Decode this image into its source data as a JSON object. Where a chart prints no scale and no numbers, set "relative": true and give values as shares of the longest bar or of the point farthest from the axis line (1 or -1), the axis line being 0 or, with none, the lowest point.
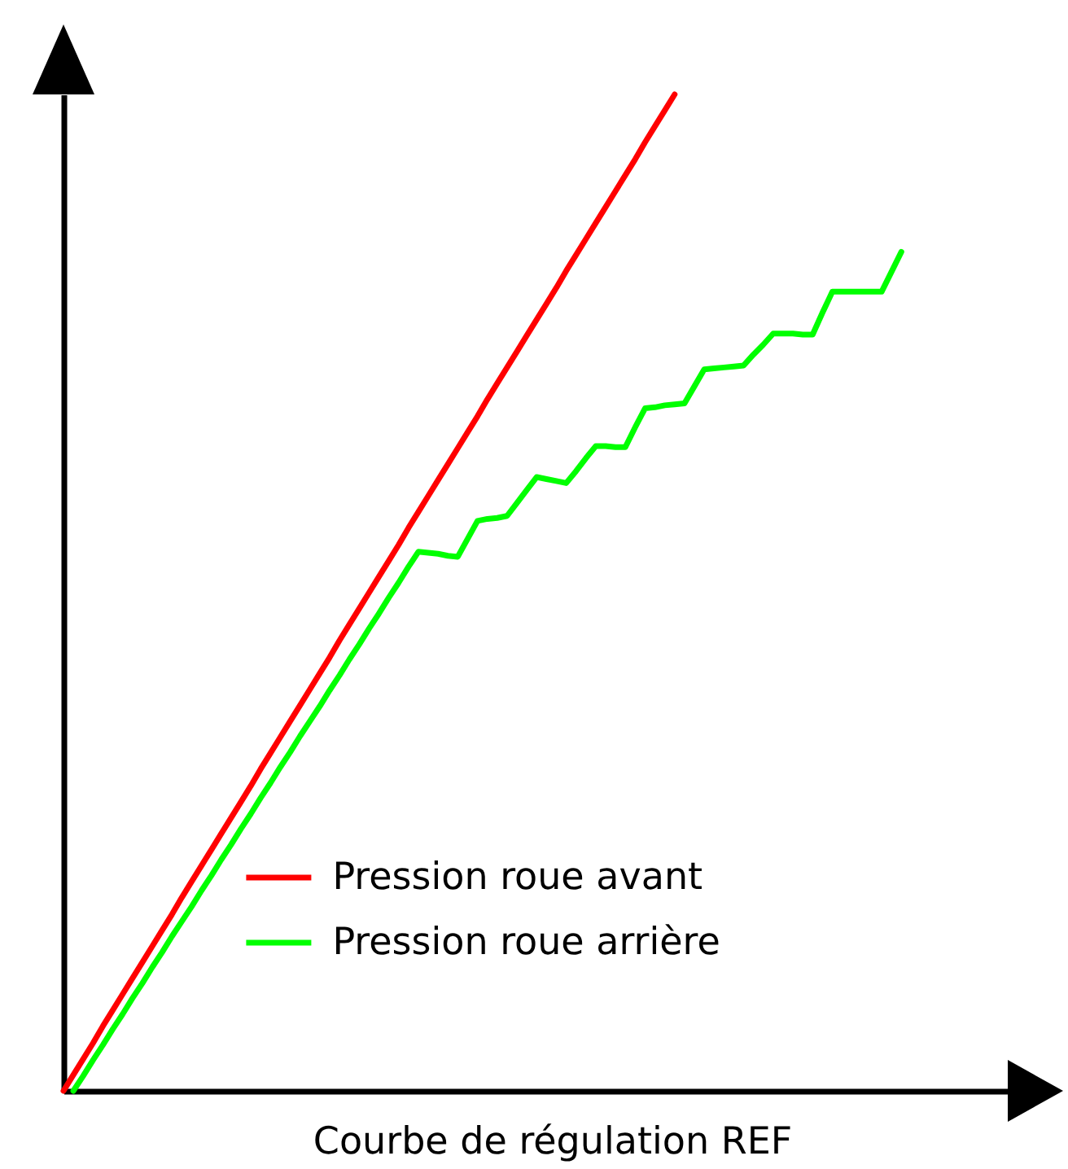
{
  "chart_data": {
    "type": "line",
    "relative": true,
    "xlabel": "Courbe de régulation REF",
    "legend": "bottom left",
    "categories": [
      null,
      null,
      null,
      null,
      null,
      null,
      null,
      null,
      null,
      null,
      null,
      null,
      null,
      null,
      null,
      null,
      null,
      null,
      null,
      null,
      null,
      null,
      null,
      null,
      null,
      null,
      null,
      null,
      null,
      null,
      null,
      null,
      null,
      null,
      null,
      null,
      null,
      null,
      null,
      null,
      null,
      null,
      null,
      null,
      null,
      null,
      null,
      null,
      null,
      null,
      null,
      null,
      null,
      null,
      null,
      null,
      null,
      null,
      null,
      null,
      null,
      null,
      null,
      null,
      null,
      null,
      null,
      null,
      null,
      null,
      null,
      null,
      null,
      null,
      null,
      null,
      null,
      null,
      null,
      null,
      null,
      null,
      null,
      null,
      null,
      null
    ],
    "series": [
      {
        "name": "Pression roue avant",
        "color": "#ff0000",
        "values": [
          0,
          0.016,
          0.032,
          0.048,
          0.065,
          0.081,
          0.097,
          0.113,
          0.129,
          0.145,
          0.161,
          0.177,
          0.194,
          0.21,
          0.226,
          0.242,
          0.258,
          0.274,
          0.29,
          0.306,
          0.323,
          0.339,
          0.355,
          0.371,
          0.387,
          0.403,
          0.419,
          0.435,
          0.452,
          0.468,
          0.484,
          0.5,
          0.516,
          0.532,
          0.548,
          0.565,
          0.581,
          0.597,
          0.613,
          0.629,
          0.645,
          0.661,
          0.677,
          0.694,
          0.71,
          0.726,
          0.742,
          0.758,
          0.774,
          0.79,
          0.806,
          0.823,
          0.839,
          0.855,
          0.871,
          0.887,
          0.903,
          0.919,
          0.935,
          0.952,
          0.968,
          0.984,
          1,
          null,
          null,
          null,
          null,
          null,
          null,
          null,
          null,
          null,
          null,
          null,
          null,
          null,
          null,
          null,
          null,
          null,
          null,
          null,
          null,
          null,
          null,
          null
        ]
      },
      {
        "name": "Pression roue arrière",
        "color": "#00ff00",
        "values": [
          null,
          0,
          0.015,
          0.031,
          0.046,
          0.062,
          0.077,
          0.093,
          0.108,
          0.124,
          0.139,
          0.155,
          0.17,
          0.185,
          0.201,
          0.216,
          0.232,
          0.247,
          0.263,
          0.278,
          0.294,
          0.309,
          0.325,
          0.34,
          0.356,
          0.371,
          0.386,
          0.402,
          0.417,
          0.433,
          0.448,
          0.464,
          0.479,
          0.495,
          0.51,
          0.526,
          0.541,
          0.54,
          0.539,
          0.537,
          0.536,
          0.554,
          0.572,
          0.574,
          0.575,
          0.577,
          0.59,
          0.603,
          0.616,
          0.614,
          0.612,
          0.61,
          0.622,
          0.635,
          0.647,
          0.647,
          0.646,
          0.646,
          0.666,
          0.685,
          0.686,
          0.688,
          0.689,
          0.69,
          0.707,
          0.724,
          0.725,
          0.726,
          0.727,
          0.728,
          0.739,
          0.749,
          0.76,
          0.76,
          0.76,
          0.759,
          0.759,
          0.781,
          0.802,
          0.802,
          0.802,
          0.802,
          0.802,
          0.802,
          0.822,
          0.842
        ]
      }
    ]
  }
}
